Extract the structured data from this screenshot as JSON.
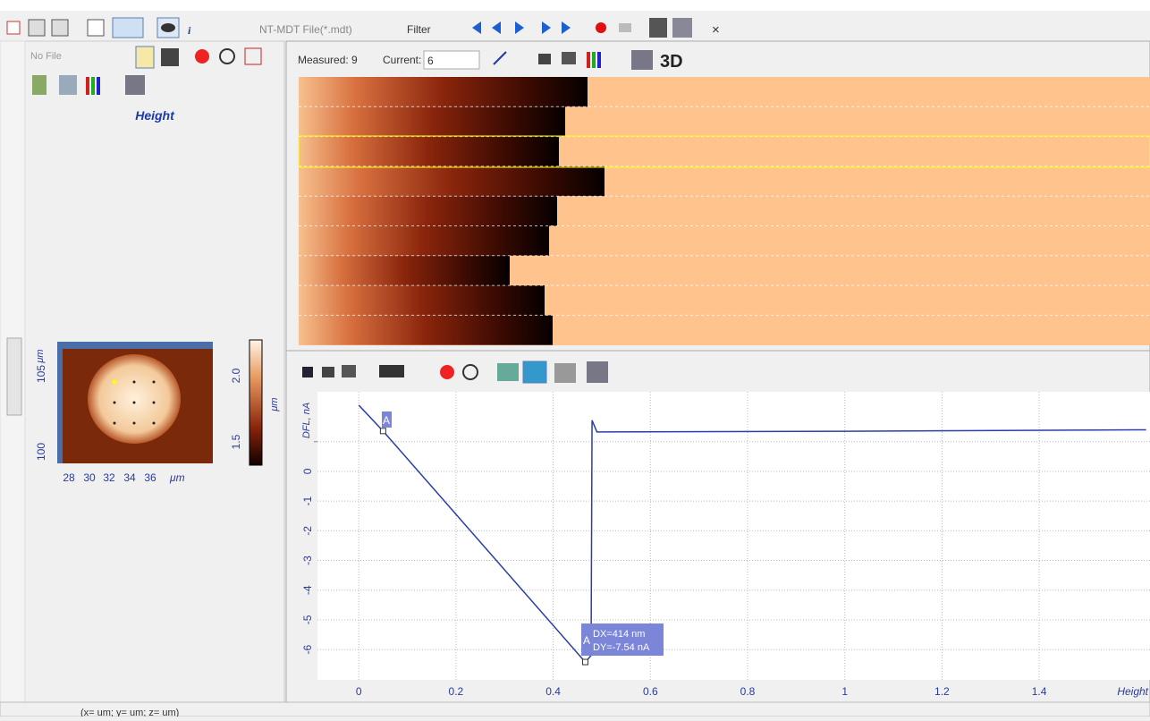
{
  "toolbar": {
    "file_filter": "NT-MDT File(*.mdt)",
    "filter": "Filter",
    "close": "×"
  },
  "left_panel": {
    "file": "No File",
    "channel": "Height",
    "preview": {
      "y_unit": "μm",
      "yticks": [
        "105",
        "100"
      ],
      "xticks": [
        "28",
        "30",
        "32",
        "34",
        "36"
      ],
      "x_unit": "μm",
      "colorbar_ticks": [
        "2.0",
        "1.5"
      ],
      "colorbar_unit": "μm"
    }
  },
  "image_panel": {
    "measured": "Measured: 9",
    "current_label": "Current:",
    "current_value": "6",
    "view_3d": "3D"
  },
  "chart_data": {
    "type": "line",
    "y_label": "DFL, nA",
    "x_label": "Height",
    "xlim": [
      -0.085,
      1.628
    ],
    "ylim": [
      -7.02,
      2.68
    ],
    "xticks": [
      0,
      0.2,
      0.4,
      0.6,
      0.8,
      1,
      1.2,
      1.4
    ],
    "yticks": [
      1,
      0,
      -1,
      -2,
      -3,
      -4,
      -5,
      -6
    ],
    "grid": true,
    "series": [
      {
        "color": "#2b3da8",
        "x": [
          0,
          0.05,
          0.466,
          0.47,
          0.478,
          0.48,
          0.49,
          1.0,
          1.62
        ],
        "values": [
          2.23,
          1.36,
          -6.42,
          -6.35,
          -6.2,
          1.72,
          1.33,
          1.35,
          1.4
        ]
      }
    ],
    "annotations": [
      "A",
      "A",
      "DX=414 nm",
      "DY=-7.54 nA"
    ]
  },
  "status": "(x= um; y= um; z= um)"
}
